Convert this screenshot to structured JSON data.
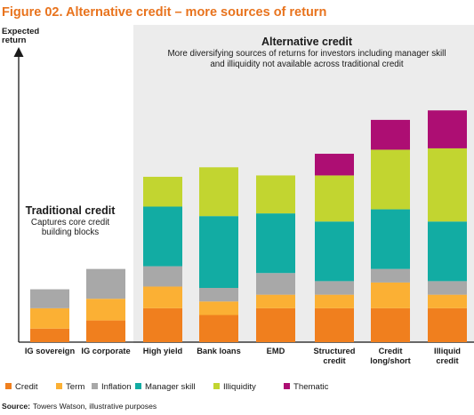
{
  "title": "Figure 02. Alternative credit – more sources of return",
  "source_label": "Source:",
  "source_text": "Towers Watson, illustrative purposes",
  "annotations": {
    "traditional_title": "Traditional credit",
    "traditional_sub": [
      "Captures core credit",
      "building blocks"
    ],
    "alternative_title": "Alternative credit",
    "alternative_sub": [
      "More diversifying sources of returns for investors including manager skill",
      "and illiquidity not available across traditional credit"
    ]
  },
  "colors": {
    "Credit": "#f07f1e",
    "Term": "#fbb034",
    "Inflation": "#a8a8a8",
    "Manager skill": "#12aca3",
    "Illiquidity": "#c2d530",
    "Thematic": "#ad0e73",
    "title": "#e8731d",
    "alt_band": "#ececec"
  },
  "chart_data": {
    "type": "bar",
    "stacked": true,
    "ylabel": "Expected return",
    "xlabel": "",
    "ylim": [
      0,
      100
    ],
    "grid": false,
    "legend_position": "bottom",
    "categories": [
      [
        "IG sovereign"
      ],
      [
        "IG corporate"
      ],
      [
        "High yield"
      ],
      [
        "Bank loans"
      ],
      [
        "EMD"
      ],
      [
        "Structured",
        "credit"
      ],
      [
        "Credit",
        "long/short"
      ],
      [
        "Illiquid",
        "credit"
      ]
    ],
    "series": [
      {
        "name": "Credit",
        "values": [
          5,
          8,
          12.5,
          10,
          12.5,
          12.5,
          12.5,
          12.5
        ]
      },
      {
        "name": "Term",
        "values": [
          7.5,
          8,
          8,
          5,
          5,
          5,
          9.5,
          5
        ]
      },
      {
        "name": "Inflation",
        "values": [
          7,
          11,
          7.5,
          5,
          8,
          5,
          5,
          5
        ]
      },
      {
        "name": "Manager skill",
        "values": [
          0,
          0,
          22,
          26.5,
          22,
          22,
          22,
          22
        ]
      },
      {
        "name": "Illiquidity",
        "values": [
          0,
          0,
          11,
          18,
          14,
          17,
          22,
          27
        ]
      },
      {
        "name": "Thematic",
        "values": [
          0,
          0,
          0,
          0,
          0,
          8,
          11,
          14
        ]
      }
    ]
  }
}
